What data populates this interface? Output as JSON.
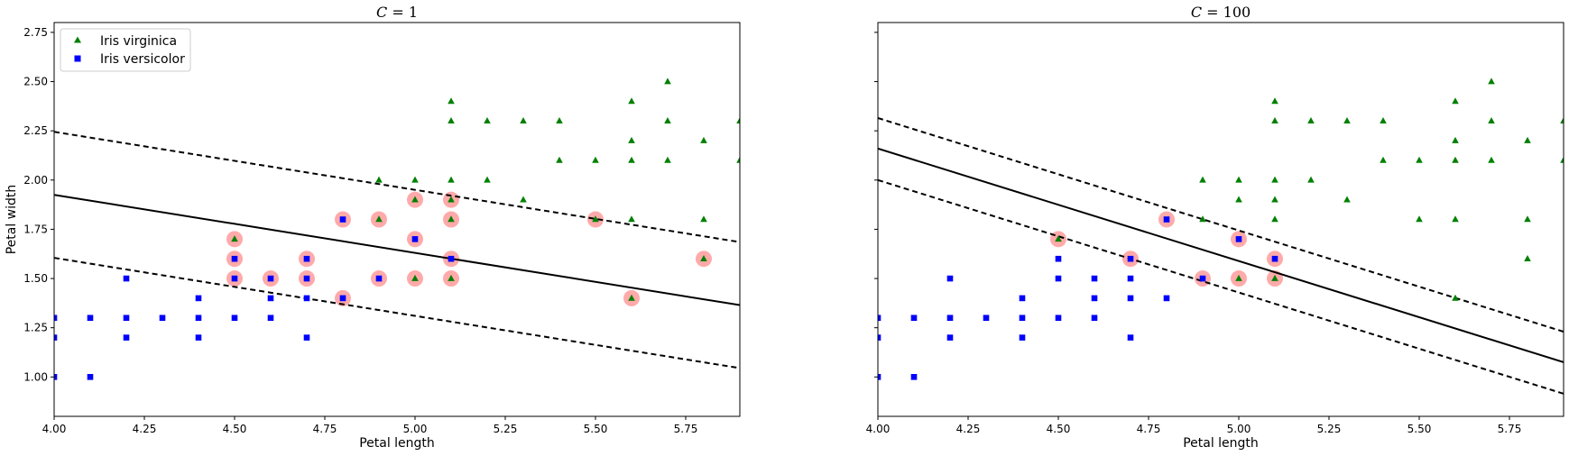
{
  "colors": {
    "virginica": "#008000",
    "versicolor": "#0000ff",
    "support_vector": "#ffaaaa",
    "decision_line": "#000000"
  },
  "chart_data": [
    {
      "type": "scatter",
      "title": "C = 1",
      "title_parts": {
        "var": "C",
        "eq": " = ",
        "num": "1"
      },
      "xlabel": "Petal length",
      "ylabel": "Petal width",
      "xlim": [
        4.0,
        5.9
      ],
      "ylim": [
        0.8,
        2.8
      ],
      "xticks": [
        4.0,
        4.25,
        4.5,
        4.75,
        5.0,
        5.25,
        5.5,
        5.75
      ],
      "xtick_labels": [
        "4.00",
        "4.25",
        "4.50",
        "4.75",
        "5.00",
        "5.25",
        "5.50",
        "5.75"
      ],
      "yticks": [
        1.0,
        1.25,
        1.5,
        1.75,
        2.0,
        2.25,
        2.5,
        2.75
      ],
      "ytick_labels": [
        "1.00",
        "1.25",
        "1.50",
        "1.75",
        "2.00",
        "2.25",
        "2.50",
        "2.75"
      ],
      "show_ytick_labels": true,
      "legend": {
        "placement": "upper-left",
        "entries": [
          "Iris virginica",
          "Iris versicolor"
        ]
      },
      "series": [
        {
          "name": "Iris virginica",
          "marker": "triangle",
          "points": [
            [
              4.5,
              1.7
            ],
            [
              4.9,
              2.0
            ],
            [
              5.0,
              2.0
            ],
            [
              5.1,
              2.4
            ],
            [
              5.1,
              2.3
            ],
            [
              5.1,
              2.0
            ],
            [
              5.1,
              1.9
            ],
            [
              5.1,
              1.8
            ],
            [
              5.1,
              1.5
            ],
            [
              5.2,
              2.3
            ],
            [
              5.2,
              2.0
            ],
            [
              5.3,
              2.3
            ],
            [
              5.3,
              1.9
            ],
            [
              5.4,
              2.3
            ],
            [
              5.4,
              2.1
            ],
            [
              5.5,
              2.1
            ],
            [
              5.5,
              1.8
            ],
            [
              5.6,
              2.4
            ],
            [
              5.6,
              2.2
            ],
            [
              5.6,
              2.1
            ],
            [
              5.6,
              1.8
            ],
            [
              5.6,
              1.4
            ],
            [
              5.7,
              2.5
            ],
            [
              5.7,
              2.3
            ],
            [
              5.7,
              2.1
            ],
            [
              5.8,
              2.2
            ],
            [
              5.8,
              1.8
            ],
            [
              5.8,
              1.6
            ],
            [
              5.9,
              2.3
            ],
            [
              5.9,
              2.1
            ],
            [
              4.9,
              1.8
            ],
            [
              5.0,
              1.9
            ],
            [
              5.0,
              1.5
            ]
          ]
        },
        {
          "name": "Iris versicolor",
          "marker": "square",
          "points": [
            [
              4.0,
              1.3
            ],
            [
              4.0,
              1.2
            ],
            [
              4.0,
              1.0
            ],
            [
              4.1,
              1.3
            ],
            [
              4.1,
              1.0
            ],
            [
              4.2,
              1.5
            ],
            [
              4.2,
              1.3
            ],
            [
              4.2,
              1.2
            ],
            [
              4.3,
              1.3
            ],
            [
              4.4,
              1.4
            ],
            [
              4.4,
              1.3
            ],
            [
              4.4,
              1.2
            ],
            [
              4.5,
              1.6
            ],
            [
              4.5,
              1.5
            ],
            [
              4.5,
              1.3
            ],
            [
              4.6,
              1.5
            ],
            [
              4.6,
              1.4
            ],
            [
              4.6,
              1.3
            ],
            [
              4.7,
              1.6
            ],
            [
              4.7,
              1.5
            ],
            [
              4.7,
              1.4
            ],
            [
              4.7,
              1.2
            ],
            [
              4.8,
              1.8
            ],
            [
              4.8,
              1.4
            ],
            [
              4.9,
              1.5
            ],
            [
              5.0,
              1.7
            ],
            [
              5.1,
              1.6
            ]
          ]
        }
      ],
      "support_vectors": [
        [
          4.5,
          1.7
        ],
        [
          4.5,
          1.6
        ],
        [
          4.5,
          1.5
        ],
        [
          4.6,
          1.5
        ],
        [
          4.7,
          1.6
        ],
        [
          4.7,
          1.5
        ],
        [
          4.8,
          1.8
        ],
        [
          4.8,
          1.4
        ],
        [
          4.9,
          1.8
        ],
        [
          4.9,
          1.5
        ],
        [
          5.0,
          1.9
        ],
        [
          5.0,
          1.7
        ],
        [
          5.0,
          1.5
        ],
        [
          5.1,
          1.9
        ],
        [
          5.1,
          1.8
        ],
        [
          5.1,
          1.6
        ],
        [
          5.1,
          1.5
        ],
        [
          5.5,
          1.8
        ],
        [
          5.6,
          1.4
        ],
        [
          5.8,
          1.6
        ]
      ],
      "lines": {
        "decision": [
          [
            4.0,
            1.925
          ],
          [
            5.9,
            1.365
          ]
        ],
        "margin_upper": [
          [
            4.0,
            2.245
          ],
          [
            5.9,
            1.685
          ]
        ],
        "margin_lower": [
          [
            4.0,
            1.605
          ],
          [
            5.9,
            1.045
          ]
        ]
      }
    },
    {
      "type": "scatter",
      "title": "C = 100",
      "title_parts": {
        "var": "C",
        "eq": " = ",
        "num": "100"
      },
      "xlabel": "Petal length",
      "ylabel": "",
      "xlim": [
        4.0,
        5.9
      ],
      "ylim": [
        0.8,
        2.8
      ],
      "xticks": [
        4.0,
        4.25,
        4.5,
        4.75,
        5.0,
        5.25,
        5.5,
        5.75
      ],
      "xtick_labels": [
        "4.00",
        "4.25",
        "4.50",
        "4.75",
        "5.00",
        "5.25",
        "5.50",
        "5.75"
      ],
      "yticks": [
        1.0,
        1.25,
        1.5,
        1.75,
        2.0,
        2.25,
        2.5,
        2.75
      ],
      "ytick_labels": [],
      "show_ytick_labels": false,
      "series": [
        {
          "name": "Iris virginica",
          "marker": "triangle",
          "points": [
            [
              4.5,
              1.7
            ],
            [
              4.9,
              2.0
            ],
            [
              5.0,
              2.0
            ],
            [
              5.0,
              1.9
            ],
            [
              5.1,
              2.4
            ],
            [
              5.1,
              2.3
            ],
            [
              5.1,
              2.0
            ],
            [
              5.1,
              1.9
            ],
            [
              5.1,
              1.8
            ],
            [
              5.1,
              1.5
            ],
            [
              5.2,
              2.3
            ],
            [
              5.2,
              2.0
            ],
            [
              5.3,
              2.3
            ],
            [
              5.3,
              1.9
            ],
            [
              5.4,
              2.3
            ],
            [
              5.4,
              2.1
            ],
            [
              5.5,
              2.1
            ],
            [
              5.5,
              1.8
            ],
            [
              5.6,
              2.4
            ],
            [
              5.6,
              2.2
            ],
            [
              5.6,
              2.1
            ],
            [
              5.6,
              1.8
            ],
            [
              5.6,
              1.4
            ],
            [
              5.7,
              2.5
            ],
            [
              5.7,
              2.3
            ],
            [
              5.7,
              2.1
            ],
            [
              5.8,
              2.2
            ],
            [
              5.8,
              1.8
            ],
            [
              5.8,
              1.6
            ],
            [
              5.9,
              2.3
            ],
            [
              5.9,
              2.1
            ],
            [
              4.9,
              1.8
            ],
            [
              5.0,
              1.5
            ]
          ]
        },
        {
          "name": "Iris versicolor",
          "marker": "square",
          "points": [
            [
              4.0,
              1.3
            ],
            [
              4.0,
              1.2
            ],
            [
              4.0,
              1.0
            ],
            [
              4.1,
              1.3
            ],
            [
              4.1,
              1.0
            ],
            [
              4.2,
              1.5
            ],
            [
              4.2,
              1.3
            ],
            [
              4.2,
              1.2
            ],
            [
              4.3,
              1.3
            ],
            [
              4.4,
              1.4
            ],
            [
              4.4,
              1.3
            ],
            [
              4.4,
              1.2
            ],
            [
              4.5,
              1.6
            ],
            [
              4.5,
              1.5
            ],
            [
              4.5,
              1.3
            ],
            [
              4.6,
              1.5
            ],
            [
              4.6,
              1.4
            ],
            [
              4.6,
              1.3
            ],
            [
              4.7,
              1.6
            ],
            [
              4.7,
              1.5
            ],
            [
              4.7,
              1.4
            ],
            [
              4.7,
              1.2
            ],
            [
              4.8,
              1.8
            ],
            [
              4.8,
              1.4
            ],
            [
              4.9,
              1.5
            ],
            [
              5.0,
              1.7
            ],
            [
              5.1,
              1.6
            ]
          ]
        }
      ],
      "support_vectors": [
        [
          4.5,
          1.7
        ],
        [
          4.7,
          1.6
        ],
        [
          4.8,
          1.8
        ],
        [
          4.9,
          1.5
        ],
        [
          5.0,
          1.7
        ],
        [
          5.0,
          1.5
        ],
        [
          5.1,
          1.6
        ],
        [
          5.1,
          1.5
        ]
      ],
      "lines": {
        "decision": [
          [
            4.0,
            2.16
          ],
          [
            5.9,
            1.075
          ]
        ],
        "margin_upper": [
          [
            4.0,
            2.315
          ],
          [
            5.9,
            1.23
          ]
        ],
        "margin_lower": [
          [
            4.0,
            2.0
          ],
          [
            5.9,
            0.915
          ]
        ]
      }
    }
  ]
}
